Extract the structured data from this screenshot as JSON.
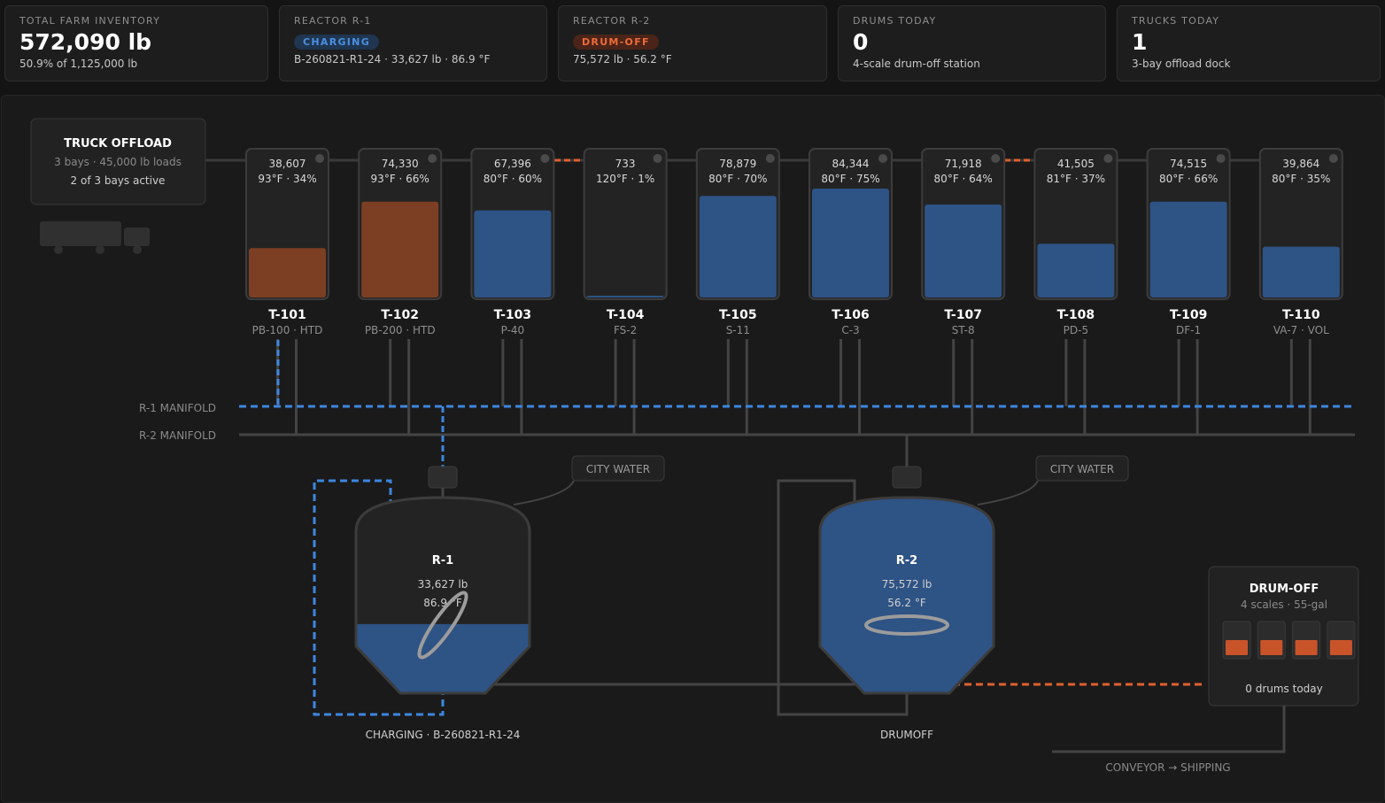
{
  "kpis": {
    "inventory": {
      "label": "TOTAL FARM INVENTORY",
      "value": "572,090 lb",
      "sub": "50.9% of 1,125,000 lb"
    },
    "r1": {
      "label": "REACTOR R-1",
      "status": "CHARGING",
      "sub": "B-260821-R1-24 · 33,627 lb · 86.9 °F"
    },
    "r2": {
      "label": "REACTOR R-2",
      "status": "DRUM-OFF",
      "sub": "75,572 lb · 56.2 °F"
    },
    "drums": {
      "label": "DRUMS TODAY",
      "value": "0",
      "sub": "4-scale drum-off station"
    },
    "trucks": {
      "label": "TRUCKS TODAY",
      "value": "1",
      "sub": "3-bay offload dock"
    }
  },
  "colors": {
    "charge": "#3d86e0",
    "drum": "#e0602e",
    "product": "#2e5385",
    "heated": "#7d3f24",
    "charging_bg": "#1f3550",
    "drumoff_bg": "#4a2418"
  },
  "truck_offload": {
    "title": "TRUCK OFFLOAD",
    "line1": "3 bays · 45,000 lb loads",
    "line2": "2 of 3 bays active"
  },
  "tanks": [
    {
      "id": "T-101",
      "product": "PB-100 · HTD",
      "weight": "38,607",
      "cond": "93°F · 34%",
      "level": 0.34,
      "heated": true
    },
    {
      "id": "T-102",
      "product": "PB-200 · HTD",
      "weight": "74,330",
      "cond": "93°F · 66%",
      "level": 0.66,
      "heated": true
    },
    {
      "id": "T-103",
      "product": "P-40",
      "weight": "67,396",
      "cond": "80°F · 60%",
      "level": 0.6,
      "heated": false
    },
    {
      "id": "T-104",
      "product": "FS-2",
      "weight": "733",
      "cond": "120°F · 1%",
      "level": 0.01,
      "heated": false
    },
    {
      "id": "T-105",
      "product": "S-11",
      "weight": "78,879",
      "cond": "80°F · 70%",
      "level": 0.7,
      "heated": false
    },
    {
      "id": "T-106",
      "product": "C-3",
      "weight": "84,344",
      "cond": "80°F · 75%",
      "level": 0.75,
      "heated": false
    },
    {
      "id": "T-107",
      "product": "ST-8",
      "weight": "71,918",
      "cond": "80°F · 64%",
      "level": 0.64,
      "heated": false
    },
    {
      "id": "T-108",
      "product": "PD-5",
      "weight": "41,505",
      "cond": "81°F · 37%",
      "level": 0.37,
      "heated": false
    },
    {
      "id": "T-109",
      "product": "DF-1",
      "weight": "74,515",
      "cond": "80°F · 66%",
      "level": 0.66,
      "heated": false
    },
    {
      "id": "T-110",
      "product": "VA-7 · VOL",
      "weight": "39,864",
      "cond": "80°F · 35%",
      "level": 0.35,
      "heated": false
    }
  ],
  "manifolds": {
    "r1": "R-1 MANIFOLD",
    "r2": "R-2 MANIFOLD"
  },
  "reactors": {
    "r1": {
      "name": "R-1",
      "weight": "33,627 lb",
      "temp": "86.9 °F",
      "level": 0.38,
      "caption": "CHARGING · B-260821-R1-24",
      "water": "CITY WATER"
    },
    "r2": {
      "name": "R-2",
      "weight": "75,572 lb",
      "temp": "56.2 °F",
      "level": 1.0,
      "caption": "DRUMOFF",
      "water": "CITY WATER"
    }
  },
  "drumoff": {
    "title": "DRUM-OFF",
    "sub": "4 scales · 55-gal",
    "count": "0 drums today",
    "scales": 4
  },
  "conveyor": "CONVEYOR → SHIPPING"
}
